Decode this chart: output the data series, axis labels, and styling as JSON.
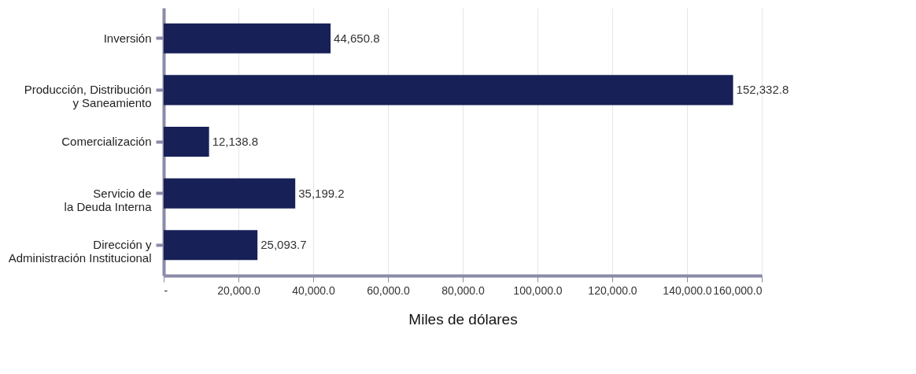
{
  "chart_data": {
    "type": "bar",
    "orientation": "horizontal",
    "xlabel": "Miles de dólares",
    "categories": [
      "Inversión",
      "Producción, Distribución\ny Saneamiento",
      "Comercialización",
      "Servicio de\nla Deuda Interna",
      "Dirección y\nAdministración Institucional"
    ],
    "values": [
      44650.8,
      152332.8,
      12138.8,
      35199.2,
      25093.7
    ],
    "color": "#172057",
    "xlim": [
      0,
      160000
    ],
    "xticks": [
      {
        "value": 0,
        "label": "-"
      },
      {
        "value": 20000,
        "label": "20,000.0"
      },
      {
        "value": 40000,
        "label": "40,000.0"
      },
      {
        "value": 60000,
        "label": "60,000.0"
      },
      {
        "value": 80000,
        "label": "80,000.0"
      },
      {
        "value": 100000,
        "label": "100,000.0"
      },
      {
        "value": 120000,
        "label": "120,000.0"
      },
      {
        "value": 140000,
        "label": "140,000.0"
      },
      {
        "value": 160000,
        "label": "160,000.0"
      }
    ],
    "grid": "x",
    "value_labels": [
      "44,650.8",
      "152,332.8",
      "12,138.8",
      "35,199.2",
      "25,093.7"
    ]
  }
}
